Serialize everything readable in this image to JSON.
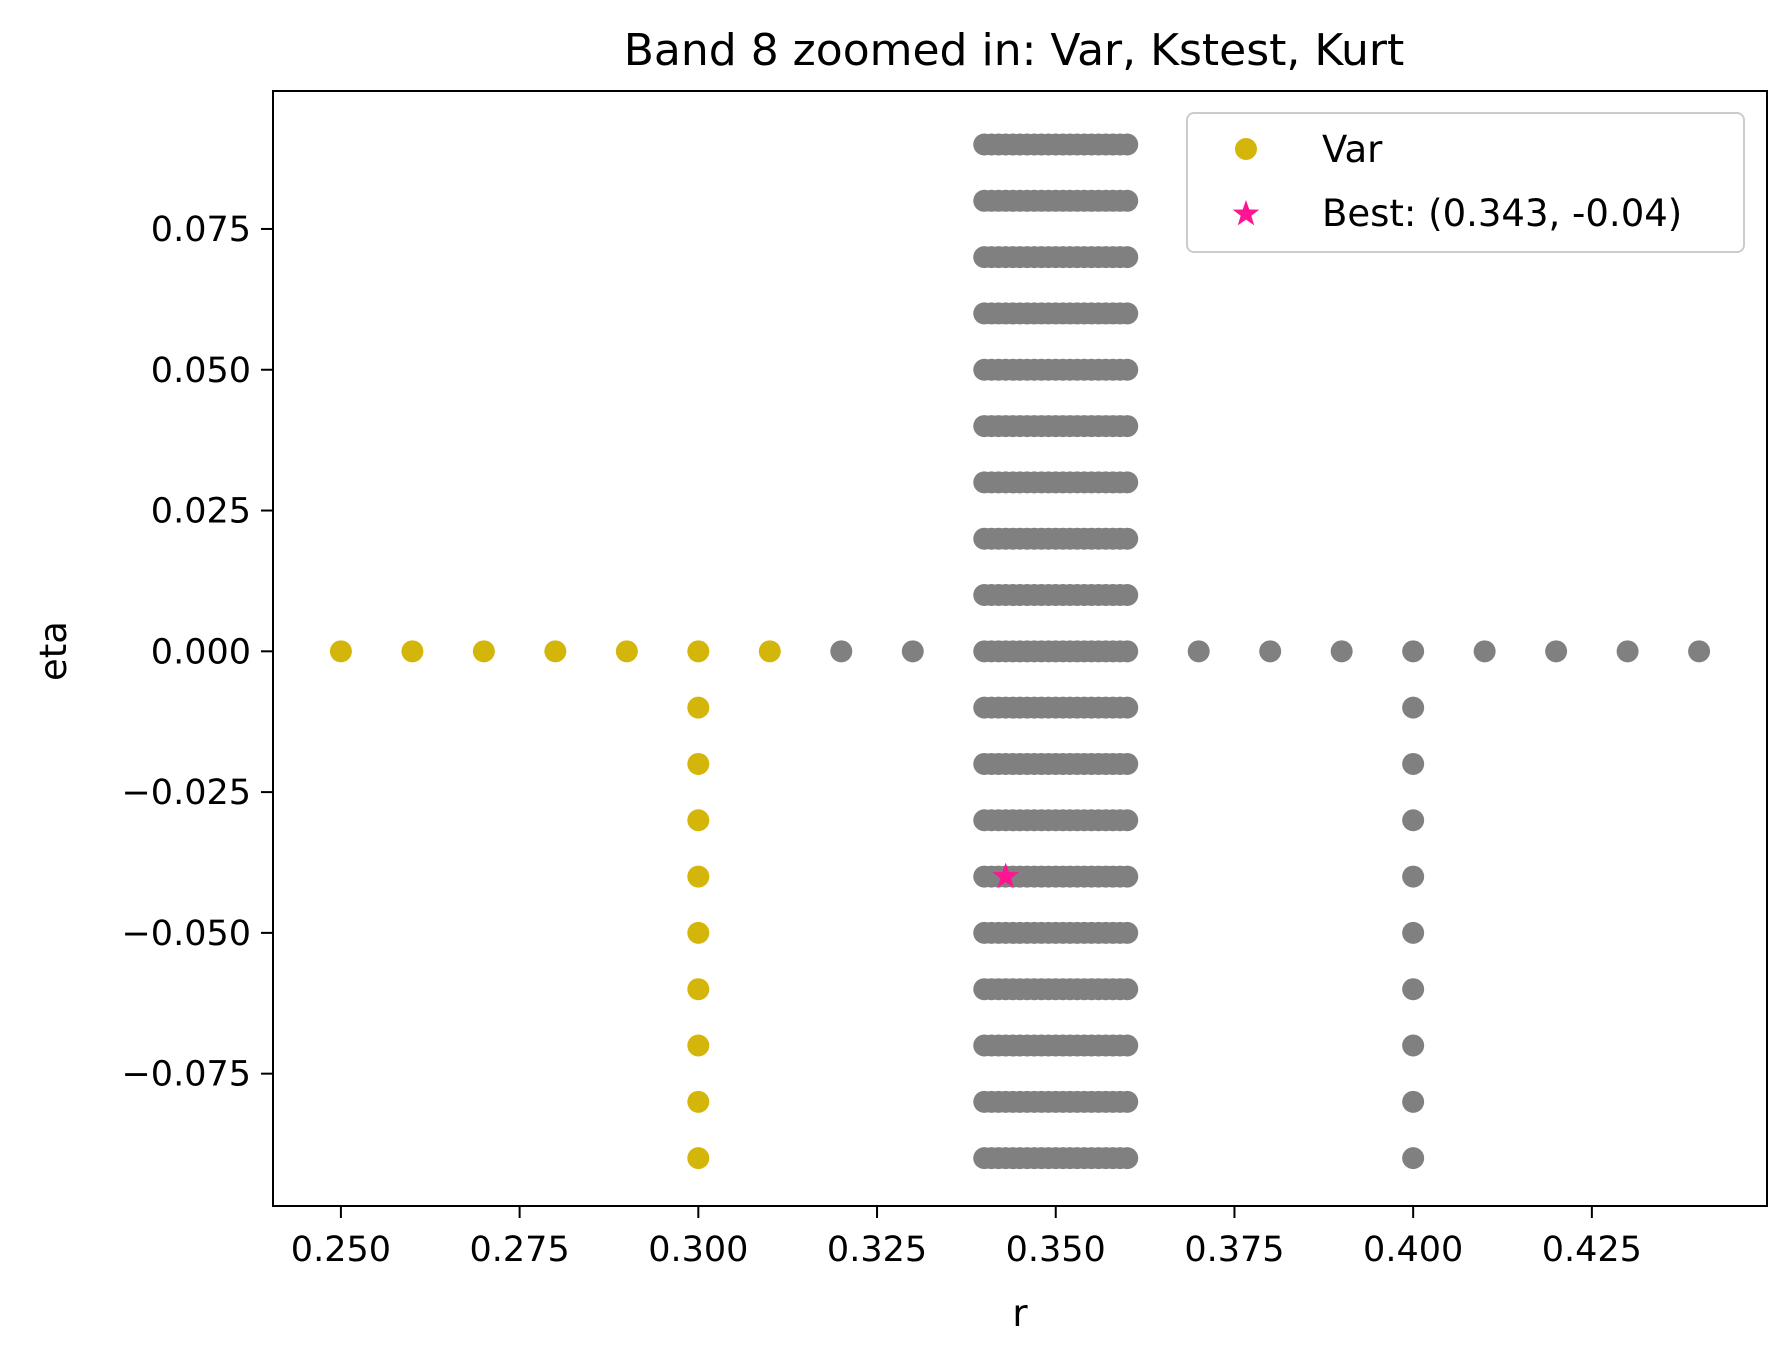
{
  "chart_data": {
    "type": "scatter",
    "title": "Band 8 zoomed in: Var, Kstest, Kurt",
    "xlabel": "r",
    "ylabel": "eta",
    "xlim": [
      0.2405,
      0.4495
    ],
    "ylim": [
      -0.0985,
      0.0995
    ],
    "xticks": [
      0.25,
      0.275,
      0.3,
      0.325,
      0.35,
      0.375,
      0.4,
      0.425
    ],
    "xtick_labels": [
      "0.250",
      "0.275",
      "0.300",
      "0.325",
      "0.350",
      "0.375",
      "0.400",
      "0.425"
    ],
    "yticks": [
      0.075,
      0.05,
      0.025,
      0.0,
      -0.025,
      -0.05,
      -0.075
    ],
    "ytick_labels": [
      "0.075",
      "0.050",
      "0.025",
      "0.000",
      "−0.025",
      "−0.050",
      "−0.075"
    ],
    "grid": false,
    "legend_position": "top-right",
    "colors": {
      "var": "#d4b60b",
      "other": "#808080",
      "best": "#ff1493"
    },
    "series": [
      {
        "name": "Var",
        "color": "#d4b60b",
        "points": [
          [
            0.25,
            0.0
          ],
          [
            0.26,
            0.0
          ],
          [
            0.27,
            0.0
          ],
          [
            0.28,
            0.0
          ],
          [
            0.29,
            0.0
          ],
          [
            0.3,
            0.0
          ],
          [
            0.31,
            0.0
          ],
          [
            0.3,
            -0.01
          ],
          [
            0.3,
            -0.02
          ],
          [
            0.3,
            -0.03
          ],
          [
            0.3,
            -0.04
          ],
          [
            0.3,
            -0.05
          ],
          [
            0.3,
            -0.06
          ],
          [
            0.3,
            -0.07
          ],
          [
            0.3,
            -0.08
          ],
          [
            0.3,
            -0.09
          ]
        ]
      },
      {
        "color": "#808080",
        "points": [
          [
            0.32,
            0.0
          ],
          [
            0.33,
            0.0
          ],
          [
            0.37,
            0.0
          ],
          [
            0.38,
            0.0
          ],
          [
            0.39,
            0.0
          ],
          [
            0.4,
            0.0
          ],
          [
            0.41,
            0.0
          ],
          [
            0.42,
            0.0
          ],
          [
            0.43,
            0.0
          ],
          [
            0.44,
            0.0
          ],
          [
            0.4,
            -0.01
          ],
          [
            0.4,
            -0.02
          ],
          [
            0.4,
            -0.03
          ],
          [
            0.4,
            -0.04
          ],
          [
            0.4,
            -0.05
          ],
          [
            0.4,
            -0.06
          ],
          [
            0.4,
            -0.07
          ],
          [
            0.4,
            -0.08
          ],
          [
            0.4,
            -0.09
          ]
        ],
        "grid_block": {
          "x_start": 0.34,
          "x_end": 0.36,
          "x_step": 0.001,
          "y_values": [
            0.09,
            0.08,
            0.07,
            0.06,
            0.05,
            0.04,
            0.03,
            0.02,
            0.01,
            0.0,
            -0.01,
            -0.02,
            -0.03,
            -0.04,
            -0.05,
            -0.06,
            -0.07,
            -0.08,
            -0.09
          ]
        }
      },
      {
        "name": "Best: (0.343, -0.04)",
        "color": "#ff1493",
        "marker": "star",
        "points": [
          [
            0.343,
            -0.04
          ]
        ]
      }
    ]
  }
}
